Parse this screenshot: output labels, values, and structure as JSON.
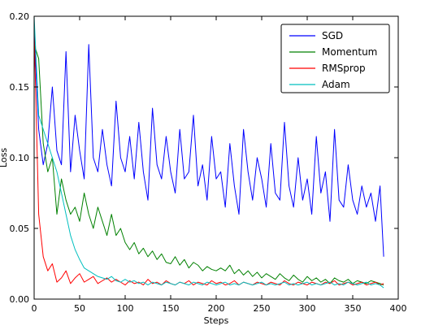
{
  "chart_data": {
    "type": "line",
    "title": "",
    "xlabel": "Steps",
    "ylabel": "Loss",
    "xlim": [
      0,
      400
    ],
    "ylim": [
      0,
      0.2
    ],
    "xticks": [
      0,
      50,
      100,
      150,
      200,
      250,
      300,
      350,
      400
    ],
    "yticks": [
      0.0,
      0.05,
      0.1,
      0.15,
      0.2
    ],
    "ytick_labels": [
      "0.00",
      "0.05",
      "0.10",
      "0.15",
      "0.20"
    ],
    "grid": false,
    "legend_position": "top-right",
    "series": [
      {
        "name": "SGD",
        "color": "#0000ff",
        "x": [
          0,
          5,
          10,
          15,
          20,
          25,
          30,
          35,
          40,
          45,
          50,
          55,
          60,
          65,
          70,
          75,
          80,
          85,
          90,
          95,
          100,
          105,
          110,
          115,
          120,
          125,
          130,
          135,
          140,
          145,
          150,
          155,
          160,
          165,
          170,
          175,
          180,
          185,
          190,
          195,
          200,
          205,
          210,
          215,
          220,
          225,
          230,
          235,
          240,
          245,
          250,
          255,
          260,
          265,
          270,
          275,
          280,
          285,
          290,
          295,
          300,
          305,
          310,
          315,
          320,
          325,
          330,
          335,
          340,
          345,
          350,
          355,
          360,
          365,
          370,
          375,
          380,
          384
        ],
        "values": [
          0.19,
          0.12,
          0.095,
          0.11,
          0.15,
          0.105,
          0.095,
          0.175,
          0.09,
          0.13,
          0.105,
          0.085,
          0.18,
          0.1,
          0.09,
          0.12,
          0.095,
          0.08,
          0.14,
          0.1,
          0.09,
          0.115,
          0.085,
          0.125,
          0.09,
          0.07,
          0.135,
          0.095,
          0.085,
          0.115,
          0.09,
          0.075,
          0.12,
          0.085,
          0.09,
          0.13,
          0.08,
          0.095,
          0.07,
          0.115,
          0.085,
          0.09,
          0.065,
          0.11,
          0.08,
          0.06,
          0.12,
          0.09,
          0.07,
          0.1,
          0.085,
          0.065,
          0.11,
          0.075,
          0.07,
          0.125,
          0.08,
          0.065,
          0.1,
          0.07,
          0.085,
          0.06,
          0.115,
          0.075,
          0.09,
          0.055,
          0.12,
          0.07,
          0.065,
          0.095,
          0.07,
          0.06,
          0.08,
          0.065,
          0.075,
          0.055,
          0.08,
          0.03
        ]
      },
      {
        "name": "Momentum",
        "color": "#008000",
        "x": [
          0,
          5,
          10,
          15,
          20,
          25,
          30,
          35,
          40,
          45,
          50,
          55,
          60,
          65,
          70,
          75,
          80,
          85,
          90,
          95,
          100,
          105,
          110,
          115,
          120,
          125,
          130,
          135,
          140,
          145,
          150,
          155,
          160,
          165,
          170,
          175,
          180,
          185,
          190,
          195,
          200,
          205,
          210,
          215,
          220,
          225,
          230,
          235,
          240,
          245,
          250,
          255,
          260,
          265,
          270,
          275,
          280,
          285,
          290,
          295,
          300,
          305,
          310,
          315,
          320,
          325,
          330,
          335,
          340,
          345,
          350,
          355,
          360,
          365,
          370,
          375,
          380,
          384
        ],
        "values": [
          0.18,
          0.17,
          0.11,
          0.09,
          0.1,
          0.06,
          0.085,
          0.07,
          0.06,
          0.065,
          0.055,
          0.075,
          0.06,
          0.05,
          0.065,
          0.055,
          0.045,
          0.06,
          0.045,
          0.05,
          0.04,
          0.035,
          0.04,
          0.032,
          0.036,
          0.03,
          0.034,
          0.028,
          0.032,
          0.026,
          0.025,
          0.03,
          0.024,
          0.028,
          0.022,
          0.026,
          0.024,
          0.02,
          0.023,
          0.021,
          0.02,
          0.022,
          0.02,
          0.024,
          0.018,
          0.021,
          0.017,
          0.02,
          0.016,
          0.019,
          0.015,
          0.018,
          0.016,
          0.014,
          0.018,
          0.015,
          0.013,
          0.017,
          0.014,
          0.012,
          0.016,
          0.013,
          0.015,
          0.012,
          0.014,
          0.011,
          0.015,
          0.013,
          0.012,
          0.014,
          0.011,
          0.013,
          0.012,
          0.011,
          0.013,
          0.012,
          0.011,
          0.01
        ]
      },
      {
        "name": "RMSprop",
        "color": "#ff0000",
        "x": [
          0,
          5,
          10,
          15,
          20,
          25,
          30,
          35,
          40,
          45,
          50,
          55,
          60,
          65,
          70,
          75,
          80,
          85,
          90,
          95,
          100,
          105,
          110,
          115,
          120,
          125,
          130,
          135,
          140,
          145,
          150,
          155,
          160,
          165,
          170,
          175,
          180,
          185,
          190,
          195,
          200,
          205,
          210,
          215,
          220,
          225,
          230,
          235,
          240,
          245,
          250,
          255,
          260,
          265,
          270,
          275,
          280,
          285,
          290,
          295,
          300,
          305,
          310,
          315,
          320,
          325,
          330,
          335,
          340,
          345,
          350,
          355,
          360,
          365,
          370,
          375,
          380,
          384
        ],
        "values": [
          0.19,
          0.06,
          0.03,
          0.02,
          0.025,
          0.012,
          0.015,
          0.02,
          0.011,
          0.015,
          0.018,
          0.012,
          0.014,
          0.016,
          0.011,
          0.013,
          0.015,
          0.012,
          0.014,
          0.012,
          0.01,
          0.013,
          0.011,
          0.012,
          0.01,
          0.014,
          0.011,
          0.012,
          0.01,
          0.013,
          0.011,
          0.01,
          0.012,
          0.011,
          0.013,
          0.01,
          0.012,
          0.011,
          0.01,
          0.013,
          0.011,
          0.012,
          0.01,
          0.011,
          0.013,
          0.01,
          0.012,
          0.011,
          0.01,
          0.012,
          0.011,
          0.01,
          0.012,
          0.011,
          0.01,
          0.013,
          0.011,
          0.01,
          0.012,
          0.011,
          0.01,
          0.012,
          0.011,
          0.01,
          0.012,
          0.011,
          0.013,
          0.01,
          0.011,
          0.012,
          0.01,
          0.011,
          0.012,
          0.01,
          0.011,
          0.012,
          0.01,
          0.011
        ]
      },
      {
        "name": "Adam",
        "color": "#00bfbf",
        "x": [
          0,
          5,
          10,
          15,
          20,
          25,
          30,
          35,
          40,
          45,
          50,
          55,
          60,
          65,
          70,
          75,
          80,
          85,
          90,
          95,
          100,
          105,
          110,
          115,
          120,
          125,
          130,
          135,
          140,
          145,
          150,
          155,
          160,
          165,
          170,
          175,
          180,
          185,
          190,
          195,
          200,
          205,
          210,
          215,
          220,
          225,
          230,
          235,
          240,
          245,
          250,
          255,
          260,
          265,
          270,
          275,
          280,
          285,
          290,
          295,
          300,
          305,
          310,
          315,
          320,
          325,
          330,
          335,
          340,
          345,
          350,
          355,
          360,
          365,
          370,
          375,
          380,
          384
        ],
        "values": [
          0.2,
          0.13,
          0.12,
          0.11,
          0.1,
          0.09,
          0.075,
          0.06,
          0.045,
          0.035,
          0.028,
          0.022,
          0.02,
          0.018,
          0.016,
          0.015,
          0.014,
          0.016,
          0.013,
          0.012,
          0.014,
          0.012,
          0.013,
          0.011,
          0.012,
          0.01,
          0.012,
          0.011,
          0.01,
          0.012,
          0.011,
          0.01,
          0.012,
          0.011,
          0.01,
          0.012,
          0.011,
          0.01,
          0.012,
          0.011,
          0.01,
          0.011,
          0.012,
          0.01,
          0.011,
          0.01,
          0.012,
          0.011,
          0.01,
          0.011,
          0.012,
          0.01,
          0.011,
          0.01,
          0.011,
          0.012,
          0.01,
          0.011,
          0.01,
          0.011,
          0.012,
          0.01,
          0.011,
          0.01,
          0.011,
          0.012,
          0.01,
          0.011,
          0.01,
          0.012,
          0.011,
          0.01,
          0.011,
          0.012,
          0.01,
          0.011,
          0.01,
          0.008
        ]
      }
    ]
  }
}
